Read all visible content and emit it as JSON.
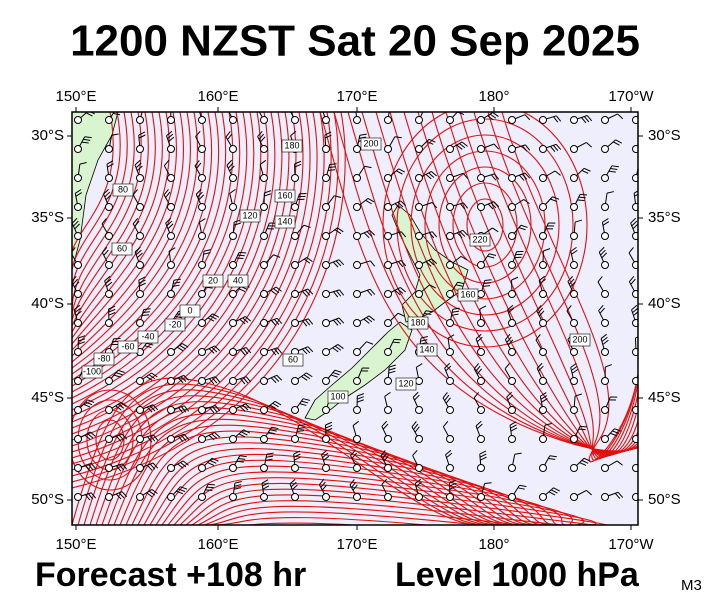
{
  "title": "1200 NZST Sat 20 Sep 2025",
  "longitude_labels": [
    "150°E",
    "160°E",
    "170°E",
    "180°",
    "170°W"
  ],
  "latitude_labels": [
    "30°S",
    "35°S",
    "40°S",
    "45°S",
    "50°S"
  ],
  "contour_labels": [
    "180",
    "200",
    "80",
    "160",
    "120",
    "140",
    "60",
    "20",
    "40",
    "0",
    "-20",
    "-40",
    "-60",
    "-80",
    "-100",
    "220",
    "160",
    "180",
    "140",
    "120",
    "100",
    "60",
    "200"
  ],
  "footer": {
    "forecast": "Forecast +108 hr",
    "level": "Level 1000 hPa",
    "model": "M3"
  }
}
